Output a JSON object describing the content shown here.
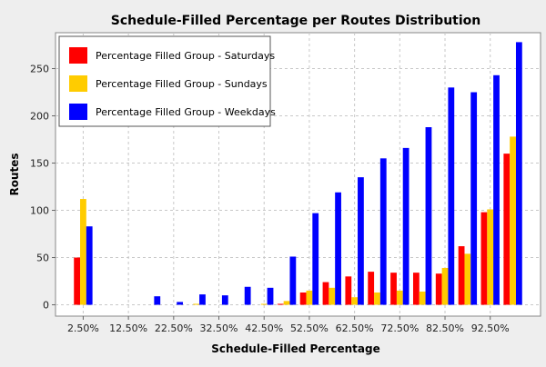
{
  "chart_data": {
    "type": "bar",
    "title": "Schedule-Filled Percentage per Routes Distribution",
    "xlabel": "Schedule-Filled Percentage",
    "ylabel": "Routes",
    "ylim": [
      -12,
      288
    ],
    "yticks": [
      0,
      50,
      100,
      150,
      200,
      250
    ],
    "grid": true,
    "legend_position": "top-left",
    "categories": [
      "2.50%",
      "7.50%",
      "12.50%",
      "17.50%",
      "22.50%",
      "27.50%",
      "32.50%",
      "37.50%",
      "42.50%",
      "47.50%",
      "52.50%",
      "57.50%",
      "62.50%",
      "67.50%",
      "72.50%",
      "77.50%",
      "82.50%",
      "87.50%",
      "92.50%",
      "97.50%"
    ],
    "visible_tick_labels": [
      "2.50%",
      "12.50%",
      "22.50%",
      "32.50%",
      "42.50%",
      "52.50%",
      "62.50%",
      "72.50%",
      "82.50%",
      "92.50%"
    ],
    "series": [
      {
        "name": "Percentage Filled Group - Saturdays",
        "color": "#ff0000",
        "values": [
          50,
          0,
          0,
          0,
          0,
          0,
          0,
          0,
          0,
          1,
          13,
          24,
          30,
          35,
          34,
          34,
          33,
          62,
          98,
          160
        ]
      },
      {
        "name": "Percentage Filled Group - Sundays",
        "color": "#ffcc00",
        "values": [
          112,
          0,
          0,
          0,
          0,
          1,
          0,
          0,
          1,
          4,
          15,
          18,
          8,
          13,
          15,
          14,
          39,
          54,
          101,
          178
        ]
      },
      {
        "name": "Percentage Filled Group - Weekdays",
        "color": "#0000ff",
        "values": [
          83,
          0,
          0,
          9,
          3,
          11,
          10,
          19,
          18,
          51,
          97,
          119,
          135,
          155,
          166,
          188,
          230,
          225,
          243,
          278
        ]
      }
    ]
  }
}
